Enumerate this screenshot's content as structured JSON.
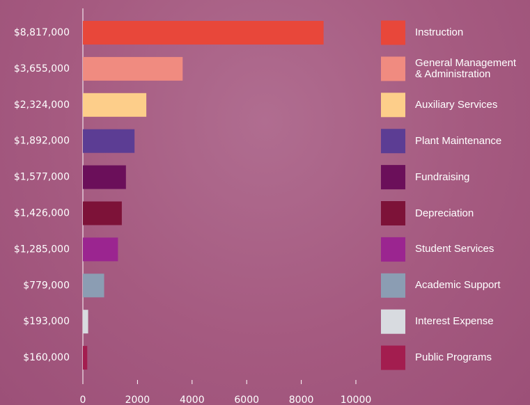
{
  "chart_data": {
    "type": "bar",
    "orientation": "horizontal",
    "categories": [
      "Instruction",
      "General Management & Administration",
      "Auxiliary Services",
      "Plant Maintenance",
      "Fundraising",
      "Depreciation",
      "Student Services",
      "Academic Support",
      "Interest Expense",
      "Public Programs"
    ],
    "values": [
      8817,
      3655,
      2324,
      1892,
      1577,
      1426,
      1285,
      779,
      193,
      160
    ],
    "value_labels": [
      "$8,817,000",
      "$3,655,000",
      "$2,324,000",
      "$1,892,000",
      "$1,577,000",
      "$1,426,000",
      "$1,285,000",
      "$779,000",
      "$193,000",
      "$160,000"
    ],
    "colors": [
      "#e8473a",
      "#f08b80",
      "#fdce8a",
      "#5c3d94",
      "#6b0f5a",
      "#7d1238",
      "#9b2590",
      "#8b9db3",
      "#d8dbe0",
      "#a31d4f"
    ],
    "xlim": [
      0,
      10000
    ],
    "xticks": [
      0,
      2000,
      4000,
      6000,
      8000,
      10000
    ],
    "grid": false,
    "legend": "right"
  }
}
